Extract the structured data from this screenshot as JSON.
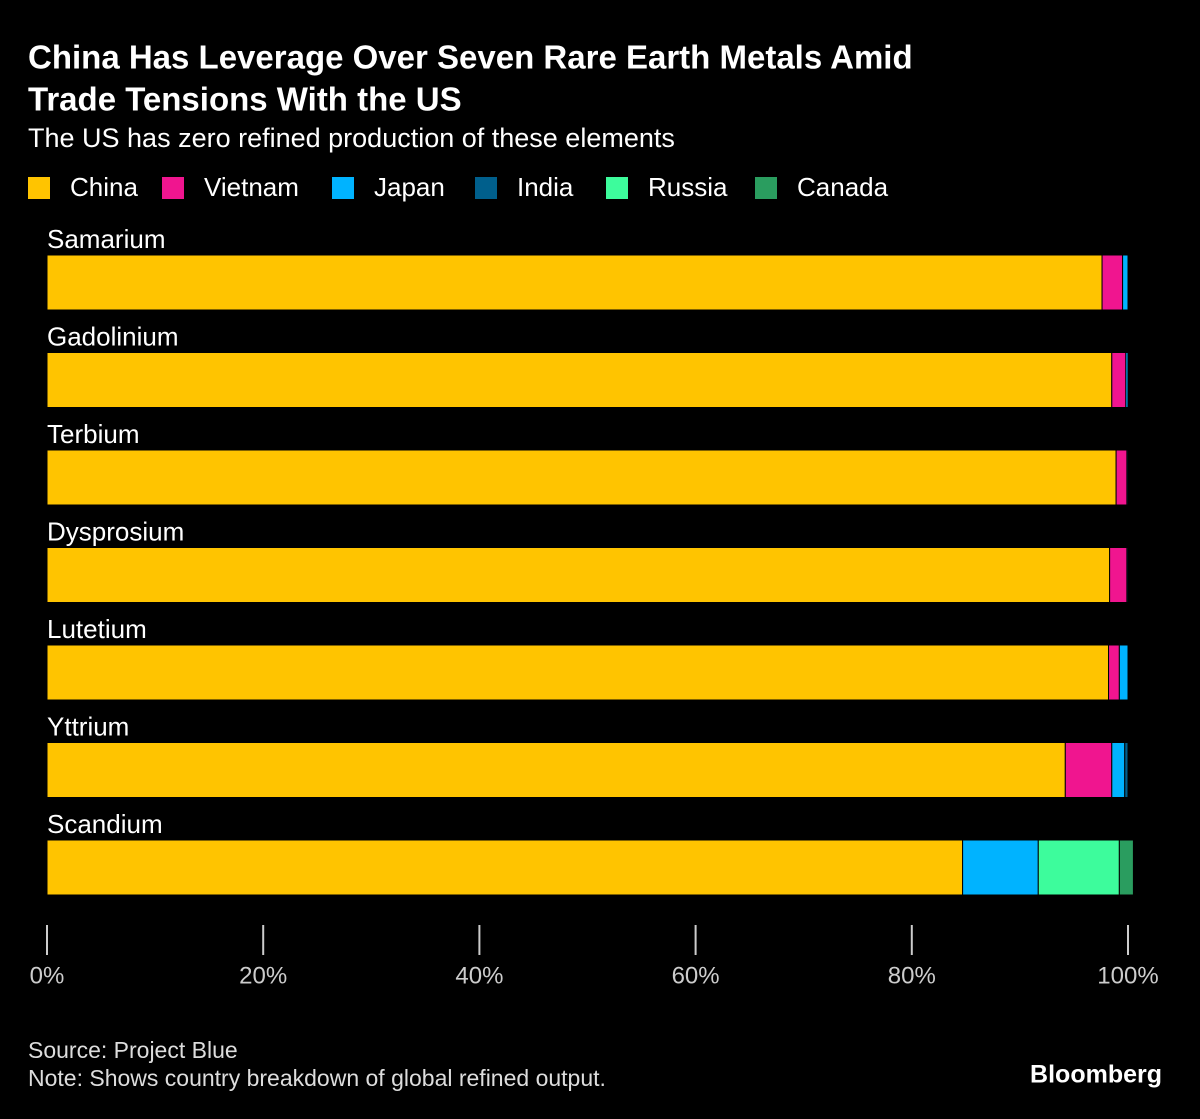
{
  "chart_data": {
    "type": "stacked-bar-horizontal",
    "title": [
      "China Has Leverage Over Seven Rare Earth Metals Amid",
      "Trade Tensions With the US"
    ],
    "subtitle": "The US has zero refined production of these elements",
    "categories": [
      "Samarium",
      "Gadolinium",
      "Terbium",
      "Dysprosium",
      "Lutetium",
      "Yttrium",
      "Scandium"
    ],
    "series": [
      {
        "name": "China",
        "color": "#ffc400",
        "values": [
          97.6,
          98.5,
          98.9,
          98.3,
          98.2,
          94.2,
          84.7
        ]
      },
      {
        "name": "Vietnam",
        "color": "#f0158f",
        "values": [
          1.9,
          1.3,
          1.0,
          1.6,
          1.0,
          4.3,
          0
        ]
      },
      {
        "name": "Japan",
        "color": "#00b3ff",
        "values": [
          0.5,
          0.2,
          0.1,
          0.1,
          0.8,
          1.2,
          7.0
        ]
      },
      {
        "name": "India",
        "color": "#005f8c",
        "values": [
          0,
          0,
          0,
          0,
          0,
          0.3,
          0
        ]
      },
      {
        "name": "Russia",
        "color": "#3dfc9c",
        "values": [
          0,
          0,
          0,
          0,
          0,
          0,
          7.5
        ]
      },
      {
        "name": "Canada",
        "color": "#2a9d5f",
        "values": [
          0,
          0,
          0,
          0,
          0,
          0,
          1.3
        ]
      }
    ],
    "xlim": [
      0,
      100
    ],
    "xticks": [
      {
        "value": 0,
        "label": "0%"
      },
      {
        "value": 20,
        "label": "20%"
      },
      {
        "value": 40,
        "label": "40%"
      },
      {
        "value": 60,
        "label": "60%"
      },
      {
        "value": 80,
        "label": "80%"
      },
      {
        "value": 100,
        "label": "100%"
      }
    ],
    "source": "Source: Project Blue",
    "note": "Note: Shows country breakdown of global refined output.",
    "brand": "Bloomberg"
  }
}
